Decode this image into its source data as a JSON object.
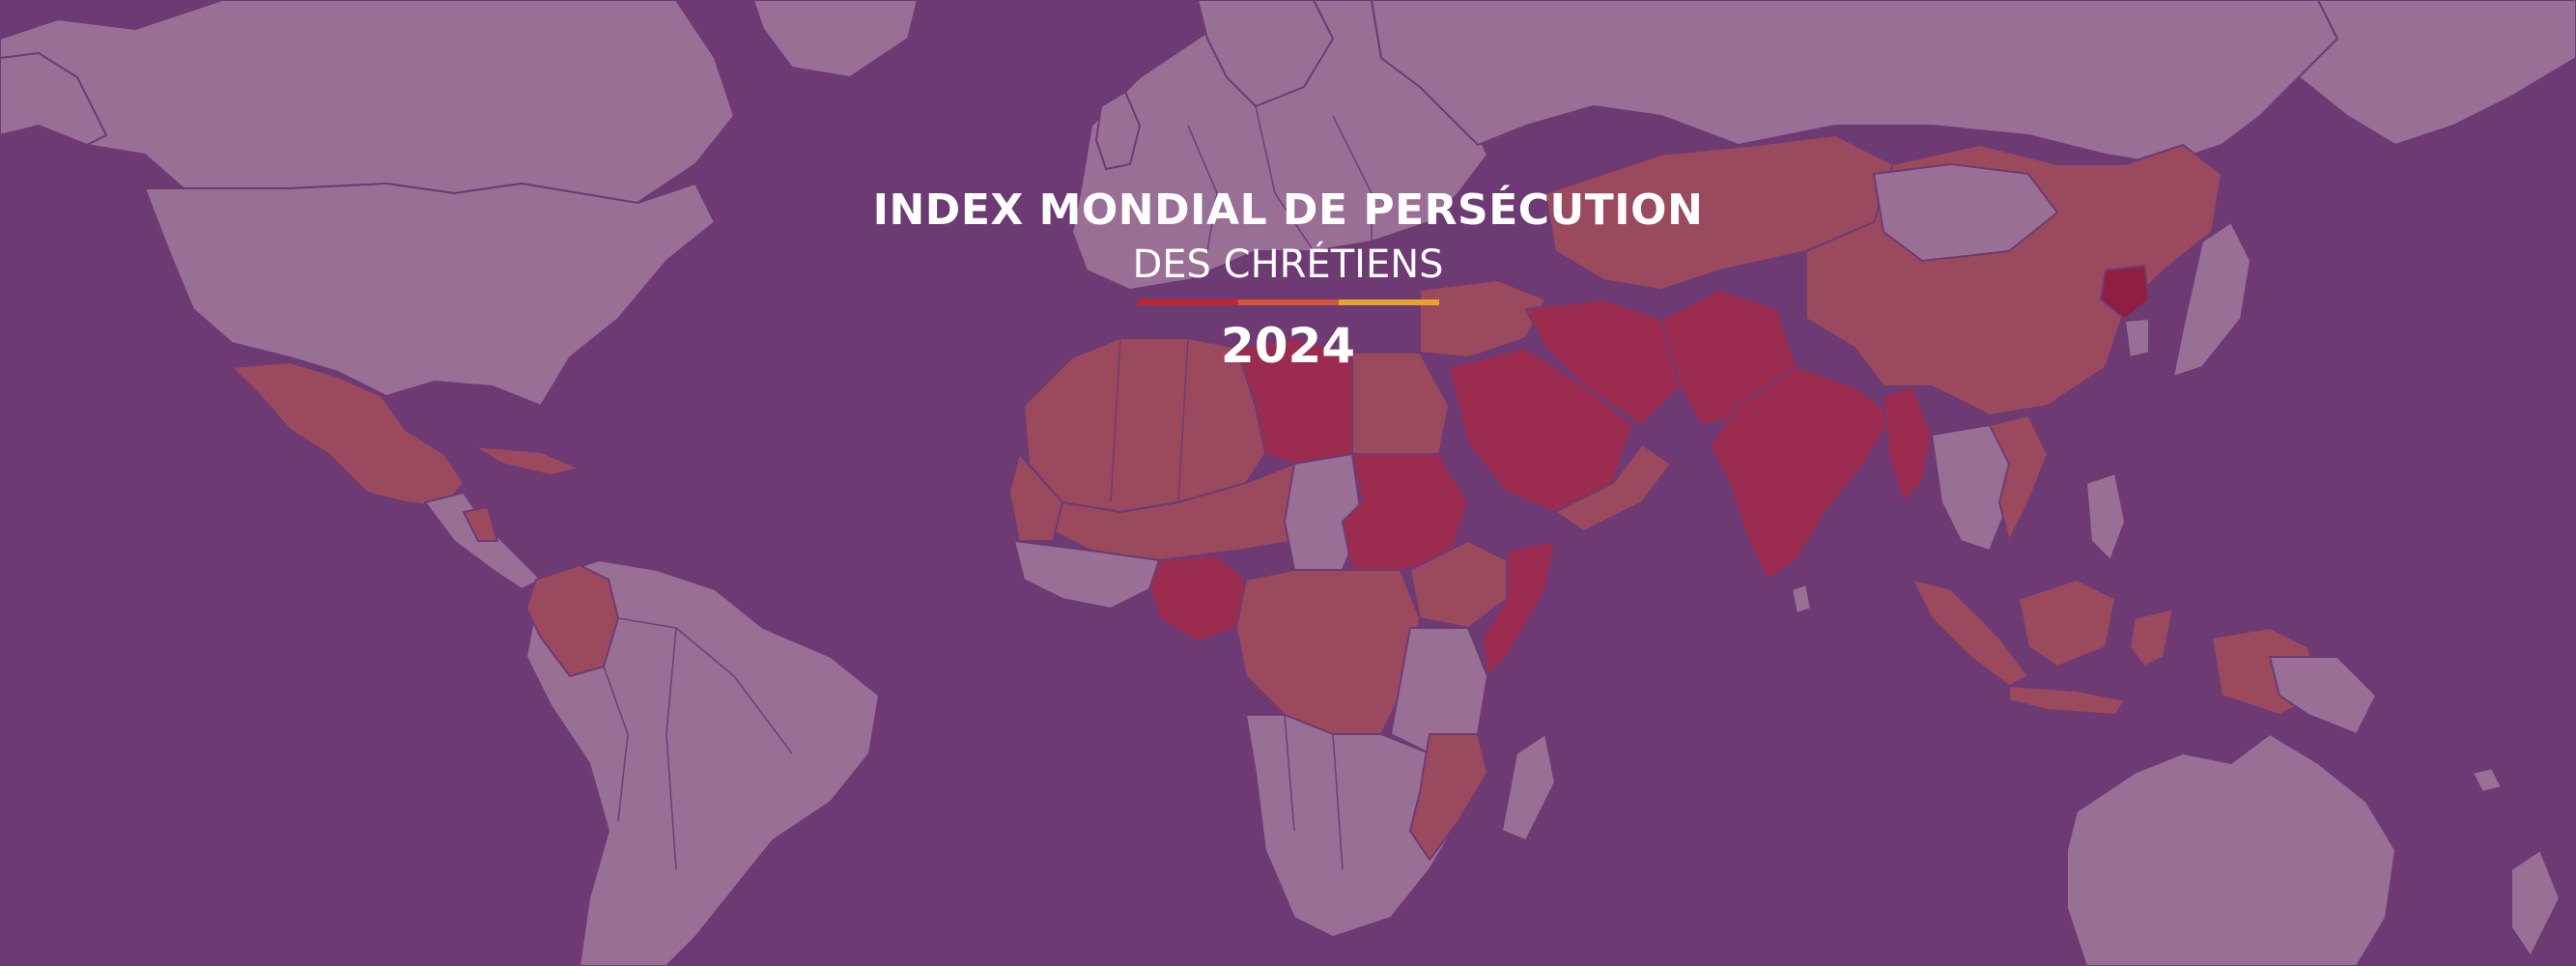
{
  "header": {
    "title_line1": "INDEX MONDIAL DE PERSÉCUTION",
    "title_line2": "DES CHRÉTIENS",
    "year": "2024"
  },
  "colors": {
    "ocean": "#6e3a74",
    "land_low": "#9a6f96",
    "land_high": "#9b4a5e",
    "land_very_high": "#9b2c4f",
    "land_extreme": "#8f1e40",
    "bar_red": "#c0272d",
    "bar_orange": "#d2553c",
    "bar_yellow": "#e8a22a"
  }
}
